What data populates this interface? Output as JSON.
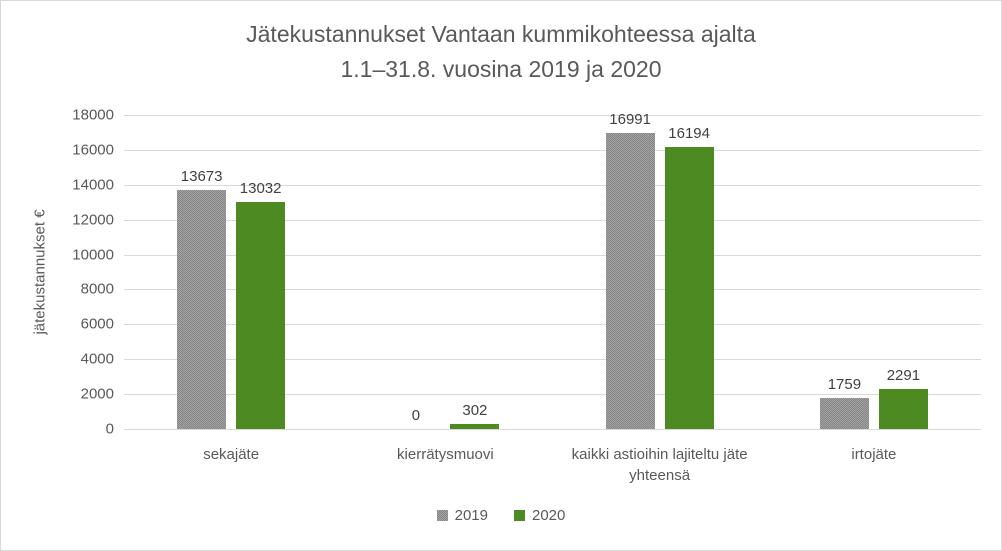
{
  "chart_data": {
    "type": "bar",
    "title": "Jätekustannukset Vantaan kummikohteessa ajalta 1.1–31.8. vuosina 2019 ja 2020",
    "title_lines": [
      "Jätekustannukset Vantaan kummikohteessa ajalta",
      "1.1–31.8. vuosina 2019 ja 2020"
    ],
    "categories": [
      "sekajäte",
      "kierrätysmuovi",
      "kaikki astioihin lajiteltu jäte yhteensä",
      "irtojäte"
    ],
    "series": [
      {
        "name": "2019",
        "values": [
          13673,
          0,
          16991,
          1759
        ],
        "color": "#858585",
        "color2": "#a3a3a3",
        "fill": "checker"
      },
      {
        "name": "2020",
        "values": [
          13032,
          302,
          16194,
          2291
        ],
        "color": "#4e8a22",
        "fill": "solid"
      }
    ],
    "xlabel": "",
    "ylabel": "jätekustannukset €",
    "ylim": [
      0,
      18000
    ],
    "ytick_step": 2000,
    "ytick_labels": [
      "0",
      "2000",
      "4000",
      "6000",
      "8000",
      "10000",
      "12000",
      "14000",
      "16000",
      "18000"
    ],
    "grid": true,
    "legend_position": "bottom",
    "data_labels": true
  },
  "colors": {
    "title_text": "#595959",
    "axis_text": "#595959",
    "data_label_text": "#404040",
    "gridline": "#d9d9d9",
    "chart_border": "#d9d9d9",
    "background": "#ffffff",
    "series_2019_gray": "#919191",
    "series_2020_green": "#4e8a22"
  }
}
